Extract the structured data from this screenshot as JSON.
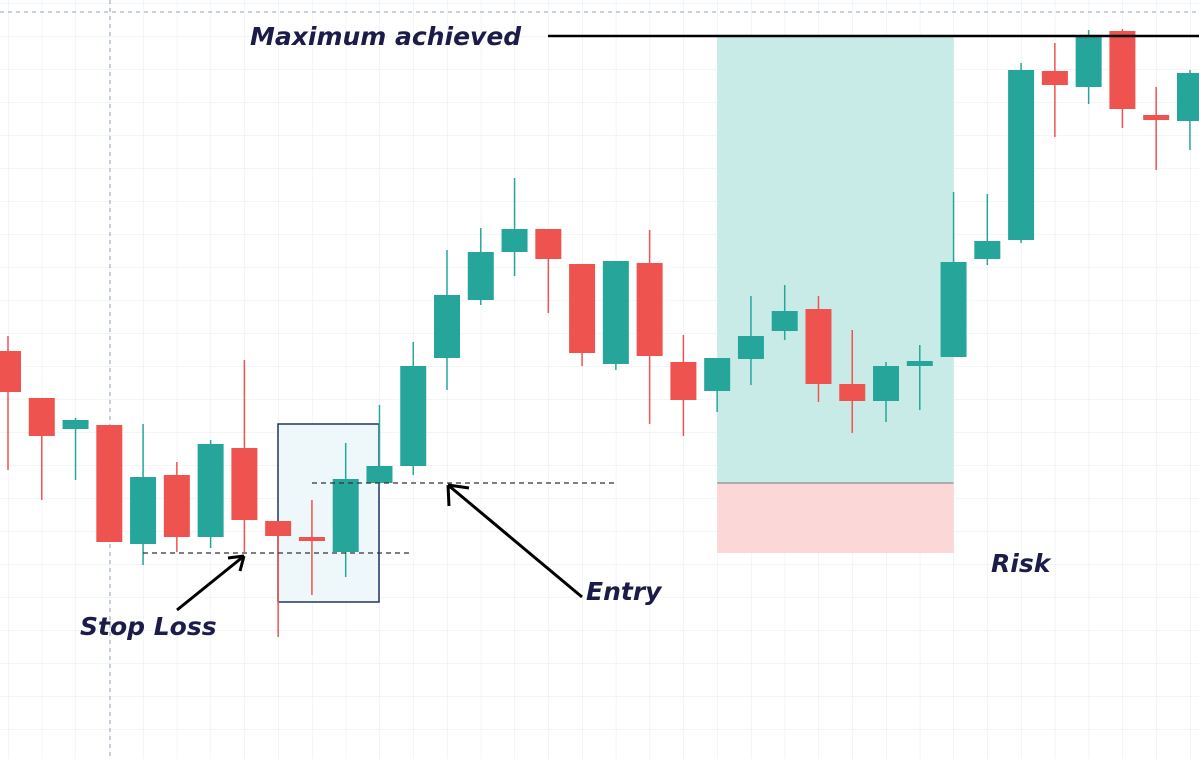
{
  "chart_data": {
    "type": "candlestick",
    "open": [
      409,
      362,
      331,
      335,
      216,
      285,
      223,
      312,
      239,
      223,
      208,
      277,
      294,
      402,
      460,
      508,
      531,
      496,
      396,
      497,
      398,
      369,
      401,
      429,
      451,
      376,
      359,
      394,
      403,
      501,
      520,
      689,
      673,
      729,
      645,
      639
    ],
    "close": [
      368,
      324,
      340,
      218,
      283,
      223,
      316,
      240,
      224,
      219,
      281,
      294,
      394,
      465,
      508,
      531,
      501,
      407,
      499,
      404,
      360,
      402,
      424,
      449,
      376,
      359,
      394,
      399,
      498,
      519,
      690,
      675,
      725,
      651,
      640,
      687
    ],
    "high": [
      424,
      362,
      342,
      335,
      336,
      298,
      320,
      400,
      239,
      260,
      317,
      355,
      418,
      510,
      532,
      582,
      531,
      496,
      496,
      530,
      425,
      402,
      464,
      475,
      464,
      430,
      398,
      415,
      568,
      566,
      697,
      717,
      730,
      731,
      673,
      690
    ],
    "low": [
      290,
      260,
      280,
      218,
      195,
      208,
      212,
      208,
      123,
      165,
      183,
      275,
      285,
      370,
      455,
      484,
      447,
      394,
      390,
      336,
      324,
      348,
      375,
      420,
      358,
      327,
      338,
      350,
      403,
      495,
      517,
      623,
      656,
      632,
      590,
      610
    ],
    "up_color": "#26a69a",
    "down_color": "#ef5350",
    "ylim": [
      0,
      760
    ],
    "levels": [
      {
        "name": "Maximum achieved",
        "value": 724
      },
      {
        "name": "Entry",
        "value": 277
      },
      {
        "name": "Stop Loss",
        "value": 207
      }
    ],
    "risk_label": "Risk"
  }
}
